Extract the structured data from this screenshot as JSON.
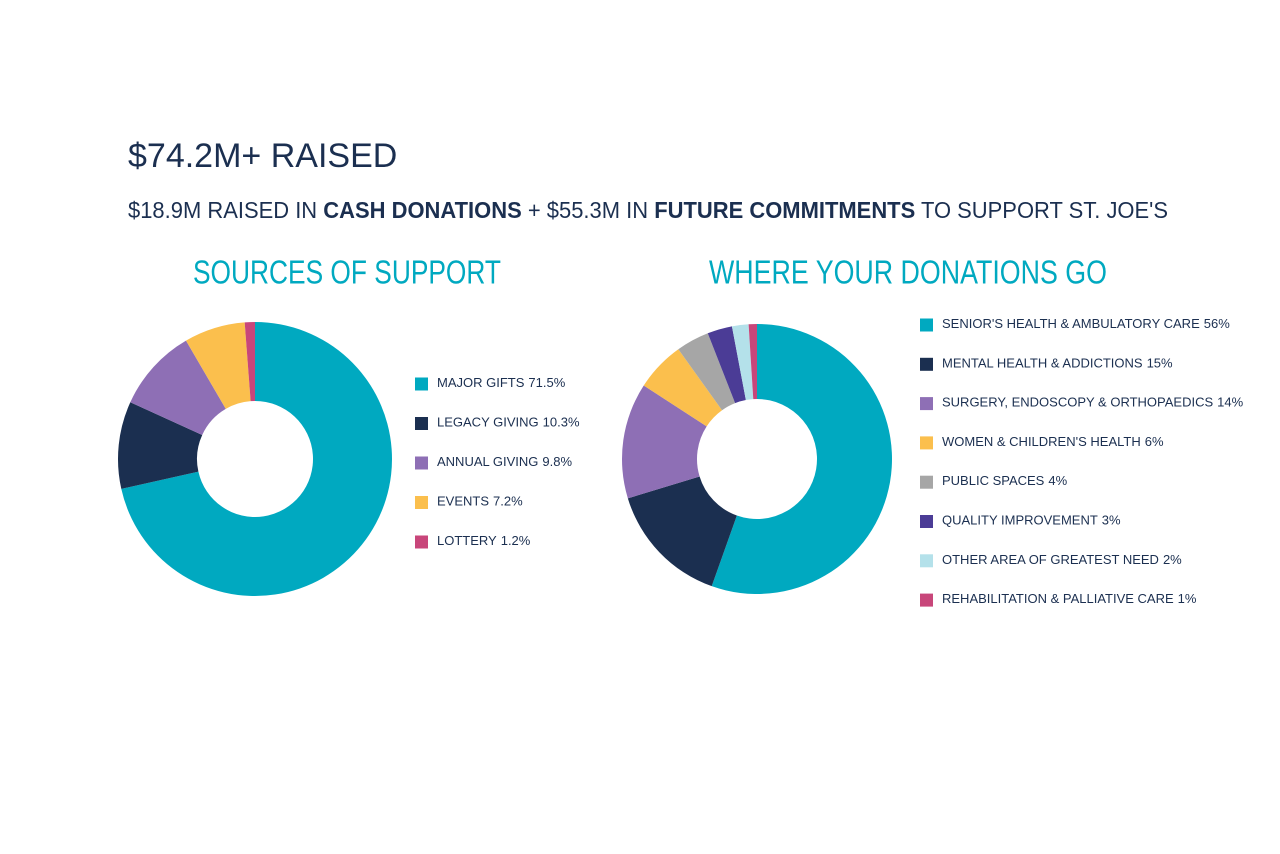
{
  "header": {
    "title": "$74.2M+ RAISED",
    "subtitle_parts": [
      "$18.9M RAISED IN ",
      "CASH DONATIONS",
      " + $55.3M IN ",
      "FUTURE COMMITMENTS",
      " TO SUPPORT ST. JOE'S"
    ]
  },
  "chart_data": [
    {
      "type": "pie",
      "title": "SOURCES OF SUPPORT",
      "labels": [
        "MAJOR GIFTS",
        "LEGACY GIVING",
        "ANNUAL GIVING",
        "EVENTS",
        "LOTTERY"
      ],
      "values": [
        71.5,
        10.3,
        9.8,
        7.2,
        1.2
      ],
      "value_labels": [
        "71.5%",
        "10.3%",
        "9.8%",
        "7.2%",
        "1.2%"
      ],
      "colors": [
        "#00a9c0",
        "#1b2f50",
        "#8e6fb5",
        "#fbbf4d",
        "#c8467a"
      ]
    },
    {
      "type": "pie",
      "title": "WHERE YOUR DONATIONS GO",
      "labels": [
        "SENIOR'S HEALTH & AMBULATORY CARE",
        "MENTAL HEALTH & ADDICTIONS",
        "SURGERY, ENDOSCOPY & ORTHOPAEDICS",
        "WOMEN & CHILDREN'S HEALTH",
        "PUBLIC SPACES",
        "QUALITY IMPROVEMENT",
        "OTHER AREA OF GREATEST NEED",
        "REHABILITATION & PALLIATIVE CARE"
      ],
      "values": [
        56,
        15,
        14,
        6,
        4,
        3,
        2,
        1
      ],
      "value_labels": [
        "56%",
        "15%",
        "14%",
        "6%",
        "4%",
        "3%",
        "2%",
        "1%"
      ],
      "colors": [
        "#00a9c0",
        "#1b2f50",
        "#8e6fb5",
        "#fbbf4d",
        "#a6a6a6",
        "#4b3c96",
        "#b4e1ea",
        "#c8467a"
      ]
    }
  ]
}
